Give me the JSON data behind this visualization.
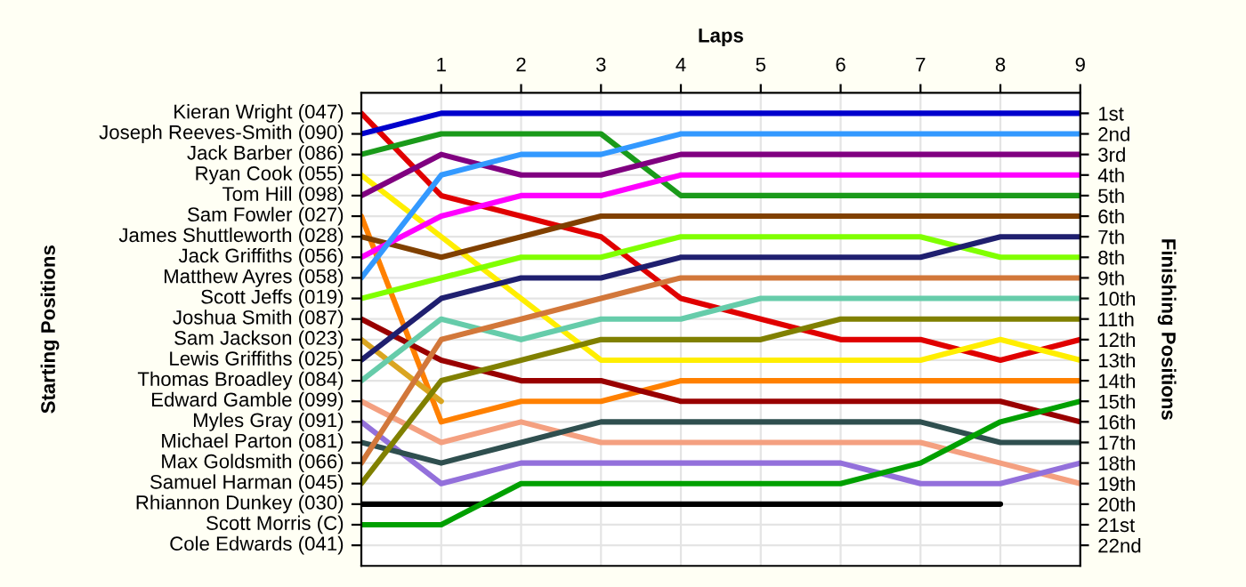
{
  "chart_data": {
    "type": "line",
    "xlabel": "Laps",
    "ylabel": "Finishing Positions",
    "x": [
      0,
      1,
      2,
      3,
      4,
      5,
      6,
      7,
      8,
      9
    ],
    "xlim": [
      0,
      9
    ],
    "xticks": [
      1,
      2,
      3,
      4,
      5,
      6,
      7,
      8,
      9
    ],
    "ylim": [
      23,
      0
    ],
    "yticks": [
      {
        "value": 1,
        "label": "1st"
      },
      {
        "value": 2,
        "label": "2nd"
      },
      {
        "value": 3,
        "label": "3rd"
      },
      {
        "value": 4,
        "label": "4th"
      },
      {
        "value": 5,
        "label": "5th"
      },
      {
        "value": 6,
        "label": "6th"
      },
      {
        "value": 7,
        "label": "7th"
      },
      {
        "value": 8,
        "label": "8th"
      },
      {
        "value": 9,
        "label": "9th"
      },
      {
        "value": 10,
        "label": "10th"
      },
      {
        "value": 11,
        "label": "11th"
      },
      {
        "value": 12,
        "label": "12th"
      },
      {
        "value": 13,
        "label": "13th"
      },
      {
        "value": 14,
        "label": "14th"
      },
      {
        "value": 15,
        "label": "15th"
      },
      {
        "value": 16,
        "label": "16th"
      },
      {
        "value": 17,
        "label": "17th"
      },
      {
        "value": 18,
        "label": "18th"
      },
      {
        "value": 19,
        "label": "19th"
      },
      {
        "value": 20,
        "label": "20th"
      },
      {
        "value": 21,
        "label": "21st"
      },
      {
        "value": 22,
        "label": "22nd"
      }
    ],
    "annotations": [
      "Starting Positions",
      "Kieran Wright (047)",
      "Joseph Reeves-Smith (090)",
      "Jack Barber (086)",
      "Ryan Cook (055)",
      "Tom Hill (098)",
      "Sam Fowler (027)",
      "James Shuttleworth (028)",
      "Jack Griffiths (056)",
      "Matthew Ayres (058)",
      "Scott Jeffs (019)",
      "Joshua Smith (087)",
      "Sam Jackson (023)",
      "Lewis Griffiths (025)",
      "Thomas Broadley (084)",
      "Edward Gamble (099)",
      "Myles Gray (091)",
      "Michael Parton (081)",
      "Max Goldsmith (066)",
      "Samuel Harman (045)",
      "Rhiannon Dunkey (030)",
      "Scott Morris (C)",
      "Cole Edwards (041)"
    ],
    "grid": true,
    "marker": "none",
    "line_style": "solid",
    "series": [
      {
        "color": "#e00000",
        "values": [
          1,
          5,
          6,
          7,
          10,
          11,
          12,
          12,
          13,
          12
        ]
      },
      {
        "color": "#0000cc",
        "values": [
          2,
          1,
          1,
          1,
          1,
          1,
          1,
          1,
          1,
          1
        ]
      },
      {
        "color": "#1a9a1a",
        "values": [
          3,
          2,
          2,
          2,
          5,
          5,
          5,
          5,
          5,
          5
        ]
      },
      {
        "color": "#ffee00",
        "values": [
          4,
          7,
          10,
          13,
          13,
          13,
          13,
          13,
          12,
          13
        ]
      },
      {
        "color": "#800080",
        "values": [
          5,
          3,
          4,
          4,
          3,
          3,
          3,
          3,
          3,
          3
        ]
      },
      {
        "color": "#ff8000",
        "values": [
          6,
          16,
          15,
          15,
          14,
          14,
          14,
          14,
          14,
          14
        ]
      },
      {
        "color": "#804000",
        "values": [
          7,
          8,
          7,
          6,
          6,
          6,
          6,
          6,
          6,
          6
        ]
      },
      {
        "color": "#ff00ff",
        "values": [
          8,
          6,
          5,
          5,
          4,
          4,
          4,
          4,
          4,
          4
        ]
      },
      {
        "color": "#3399ff",
        "values": [
          9,
          4,
          3,
          3,
          2,
          2,
          2,
          2,
          2,
          2
        ]
      },
      {
        "color": "#80ff00",
        "values": [
          10,
          9,
          8,
          8,
          7,
          7,
          7,
          7,
          8,
          8
        ]
      },
      {
        "color": "#990000",
        "values": [
          11,
          13,
          14,
          14,
          15,
          15,
          15,
          15,
          15,
          16
        ]
      },
      {
        "color": "#daa520",
        "values": [
          12,
          15,
          null,
          null,
          null,
          null,
          null,
          null,
          null,
          null
        ]
      },
      {
        "color": "#1f1f6f",
        "values": [
          13,
          10,
          9,
          9,
          8,
          8,
          8,
          8,
          7,
          7
        ]
      },
      {
        "color": "#66ccaa",
        "values": [
          14,
          11,
          12,
          11,
          11,
          10,
          10,
          10,
          10,
          10
        ]
      },
      {
        "color": "#f4a080",
        "values": [
          15,
          17,
          16,
          17,
          17,
          17,
          17,
          17,
          18,
          19
        ]
      },
      {
        "color": "#9370db",
        "values": [
          16,
          19,
          18,
          18,
          18,
          18,
          18,
          19,
          19,
          18
        ]
      },
      {
        "color": "#2f4f4f",
        "values": [
          17,
          18,
          17,
          16,
          16,
          16,
          16,
          16,
          17,
          17
        ]
      },
      {
        "color": "#d2773a",
        "values": [
          18,
          12,
          11,
          10,
          9,
          9,
          9,
          9,
          9,
          9
        ]
      },
      {
        "color": "#808000",
        "values": [
          19,
          14,
          13,
          12,
          12,
          12,
          11,
          11,
          11,
          11
        ]
      },
      {
        "color": "#000000",
        "values": [
          20,
          20,
          20,
          20,
          20,
          20,
          20,
          20,
          20,
          null
        ]
      },
      {
        "color": "#00a000",
        "values": [
          21,
          21,
          19,
          19,
          19,
          19,
          19,
          18,
          16,
          15
        ]
      }
    ]
  }
}
